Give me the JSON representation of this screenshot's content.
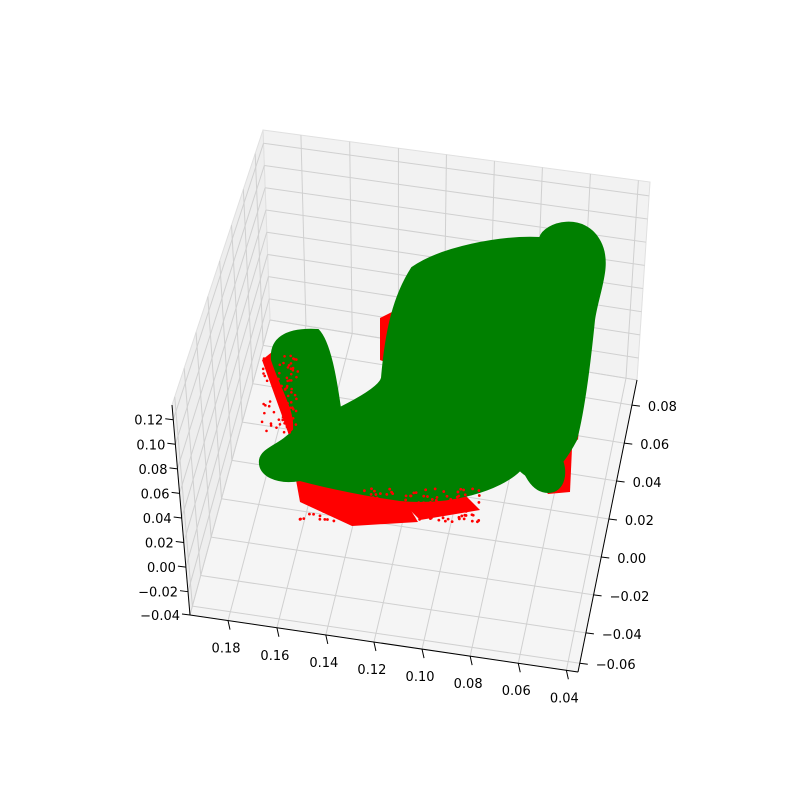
{
  "chart_data": {
    "type": "scatter",
    "projection": "3d",
    "grid": true,
    "xlim": [
      0.03,
      0.19
    ],
    "ylim": [
      -0.07,
      0.09
    ],
    "zlim": [
      -0.04,
      0.125
    ],
    "x_ticks": [
      "0.18",
      "0.16",
      "0.14",
      "0.12",
      "0.10",
      "0.08",
      "0.06",
      "0.04"
    ],
    "y_ticks": [
      "0.08",
      "0.06",
      "0.04",
      "0.02",
      "0.00",
      "−0.02",
      "−0.04",
      "−0.06"
    ],
    "z_ticks": [
      "0.12",
      "0.10",
      "0.08",
      "0.06",
      "0.04",
      "0.02",
      "0.00",
      "−0.02",
      "−0.04"
    ],
    "series": [
      {
        "color": "#ff0000",
        "marker": "point cloud"
      },
      {
        "color": "#008000",
        "marker": "point cloud"
      }
    ]
  },
  "colors": {
    "pane": "#f2f2f2",
    "pane_floor": "#f5f5f5",
    "grid": "#d0d0d0",
    "axis": "#000000"
  }
}
